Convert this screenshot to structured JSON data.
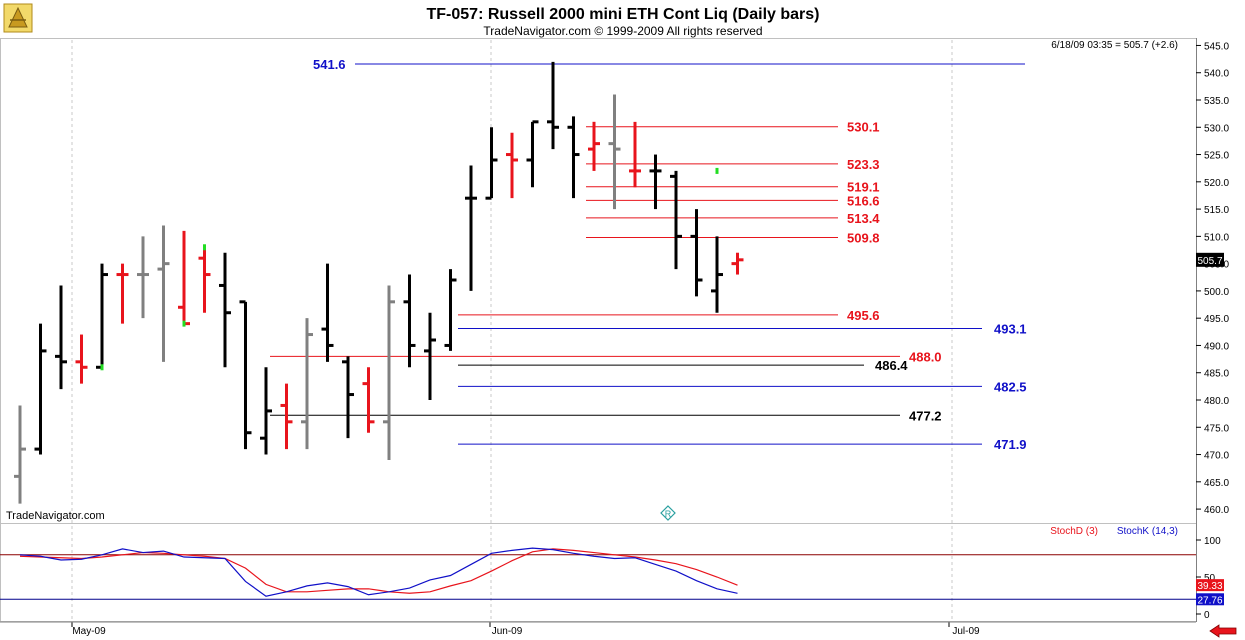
{
  "header": {
    "title": "TF-057:  Russell 2000 mini ETH Cont Liq  (Daily bars)",
    "subtitle": "TradeNavigator.com © 1999-2009 All rights reserved",
    "last_info": "6/18/09 03:35 = 505.7 (+2.6)",
    "watermark": "TradeNavigator.com"
  },
  "colors": {
    "up": "#000000",
    "down": "#e8141c",
    "neutral": "#808080",
    "highlight": "#22dd22",
    "blue_level": "#1010c8",
    "red_level": "#e8141c",
    "black_level": "#000000",
    "stochD": "#e8141c",
    "stochK": "#1010c8"
  },
  "chart_data": {
    "type": "ohlc",
    "ylim": [
      458,
      546
    ],
    "y_ticks": [
      460,
      465,
      470,
      475,
      480,
      485,
      490,
      495,
      500,
      505,
      510,
      515,
      520,
      525,
      530,
      535,
      540,
      545
    ],
    "x_labels": [
      "May-09",
      "Jun-09",
      "Jul-09"
    ],
    "last_value_label": "505.7",
    "bars": [
      {
        "o": 466,
        "h": 479,
        "l": 461,
        "c": 471,
        "col": "neutral"
      },
      {
        "o": 471,
        "h": 494,
        "l": 470,
        "c": 489,
        "col": "up"
      },
      {
        "o": 488,
        "h": 501,
        "l": 482,
        "c": 487,
        "col": "up"
      },
      {
        "o": 487,
        "h": 492,
        "l": 483,
        "c": 486,
        "col": "down"
      },
      {
        "o": 486,
        "h": 505,
        "l": 486,
        "c": 503,
        "col": "up"
      },
      {
        "o": 503,
        "h": 505,
        "l": 494,
        "c": 503,
        "col": "down"
      },
      {
        "o": 503,
        "h": 510,
        "l": 495,
        "c": 503,
        "col": "neutral"
      },
      {
        "o": 504,
        "h": 512,
        "l": 487,
        "c": 505,
        "col": "neutral"
      },
      {
        "o": 497,
        "h": 511,
        "l": 494,
        "c": 494,
        "col": "down"
      },
      {
        "o": 506,
        "h": 508,
        "l": 496,
        "c": 503,
        "col": "down"
      },
      {
        "o": 501,
        "h": 507,
        "l": 486,
        "c": 496,
        "col": "up"
      },
      {
        "o": 498,
        "h": 498,
        "l": 471,
        "c": 474,
        "col": "up"
      },
      {
        "o": 473,
        "h": 486,
        "l": 470,
        "c": 478,
        "col": "up"
      },
      {
        "o": 479,
        "h": 483,
        "l": 471,
        "c": 476,
        "col": "down"
      },
      {
        "o": 476,
        "h": 495,
        "l": 471,
        "c": 492,
        "col": "neutral"
      },
      {
        "o": 493,
        "h": 505,
        "l": 487,
        "c": 490,
        "col": "up"
      },
      {
        "o": 487,
        "h": 488,
        "l": 473,
        "c": 481,
        "col": "up"
      },
      {
        "o": 483,
        "h": 486,
        "l": 474,
        "c": 476,
        "col": "down"
      },
      {
        "o": 476,
        "h": 501,
        "l": 469,
        "c": 498,
        "col": "neutral"
      },
      {
        "o": 498,
        "h": 503,
        "l": 486,
        "c": 490,
        "col": "up"
      },
      {
        "o": 489,
        "h": 496,
        "l": 480,
        "c": 491,
        "col": "up"
      },
      {
        "o": 490,
        "h": 504,
        "l": 489,
        "c": 502,
        "col": "up"
      },
      {
        "o": 517,
        "h": 523,
        "l": 500,
        "c": 517,
        "col": "up"
      },
      {
        "o": 517,
        "h": 530,
        "l": 517,
        "c": 524,
        "col": "up"
      },
      {
        "o": 525,
        "h": 529,
        "l": 517,
        "c": 524,
        "col": "down"
      },
      {
        "o": 524,
        "h": 531,
        "l": 519,
        "c": 531,
        "col": "up"
      },
      {
        "o": 531,
        "h": 542,
        "l": 526,
        "c": 530,
        "col": "up"
      },
      {
        "o": 530,
        "h": 532,
        "l": 517,
        "c": 525,
        "col": "up"
      },
      {
        "o": 526,
        "h": 531,
        "l": 522,
        "c": 527,
        "col": "down"
      },
      {
        "o": 527,
        "h": 536,
        "l": 515,
        "c": 526,
        "col": "neutral"
      },
      {
        "o": 522,
        "h": 531,
        "l": 519,
        "c": 522,
        "col": "down"
      },
      {
        "o": 522,
        "h": 525,
        "l": 515,
        "c": 522,
        "col": "up"
      },
      {
        "o": 521,
        "h": 522,
        "l": 504,
        "c": 510,
        "col": "up"
      },
      {
        "o": 510,
        "h": 515,
        "l": 499,
        "c": 502,
        "col": "up"
      },
      {
        "o": 500,
        "h": 510,
        "l": 496,
        "c": 503,
        "col": "up"
      },
      {
        "o": 505,
        "h": 507,
        "l": 503,
        "c": 505.7,
        "col": "down"
      }
    ],
    "levels": [
      {
        "label": "541.6",
        "value": 541.6,
        "color": "blue_level",
        "side": "left"
      },
      {
        "label": "530.1",
        "value": 530.1,
        "color": "red_level",
        "side": "right"
      },
      {
        "label": "523.3",
        "value": 523.3,
        "color": "red_level",
        "side": "right"
      },
      {
        "label": "519.1",
        "value": 519.1,
        "color": "red_level",
        "side": "right"
      },
      {
        "label": "516.6",
        "value": 516.6,
        "color": "red_level",
        "side": "right"
      },
      {
        "label": "513.4",
        "value": 513.4,
        "color": "red_level",
        "side": "right"
      },
      {
        "label": "509.8",
        "value": 509.8,
        "color": "red_level",
        "side": "right"
      },
      {
        "label": "495.6",
        "value": 495.6,
        "color": "red_level",
        "side": "right"
      },
      {
        "label": "493.1",
        "value": 493.1,
        "color": "blue_level",
        "side": "right"
      },
      {
        "label": "488.0",
        "value": 488.0,
        "color": "red_level",
        "side": "right"
      },
      {
        "label": "486.4",
        "value": 486.4,
        "color": "black_level",
        "side": "right"
      },
      {
        "label": "482.5",
        "value": 482.5,
        "color": "blue_level",
        "side": "right"
      },
      {
        "label": "477.2",
        "value": 477.2,
        "color": "black_level",
        "side": "right"
      },
      {
        "label": "471.9",
        "value": 471.9,
        "color": "blue_level",
        "side": "right"
      }
    ],
    "stochastic": {
      "ylim": [
        0,
        100
      ],
      "y_ticks": [
        0,
        50,
        100
      ],
      "level_lines": [
        80,
        20
      ],
      "stochD_label": "StochD (3)",
      "stochK_label": "StochK (14,3)",
      "stochD_last": "39.33",
      "stochK_last": "27.76",
      "stochD": [
        78,
        77,
        76,
        75,
        77,
        80,
        83,
        82,
        80,
        78,
        75,
        62,
        40,
        30,
        30,
        32,
        34,
        34,
        30,
        28,
        30,
        38,
        45,
        58,
        72,
        84,
        88,
        86,
        83,
        80,
        77,
        73,
        68,
        60,
        50,
        39
      ],
      "stochK": [
        80,
        78,
        73,
        74,
        80,
        88,
        83,
        85,
        77,
        76,
        75,
        44,
        24,
        30,
        38,
        42,
        37,
        26,
        30,
        35,
        46,
        52,
        67,
        82,
        86,
        89,
        87,
        82,
        78,
        75,
        76,
        67,
        58,
        45,
        34,
        28
      ]
    }
  }
}
